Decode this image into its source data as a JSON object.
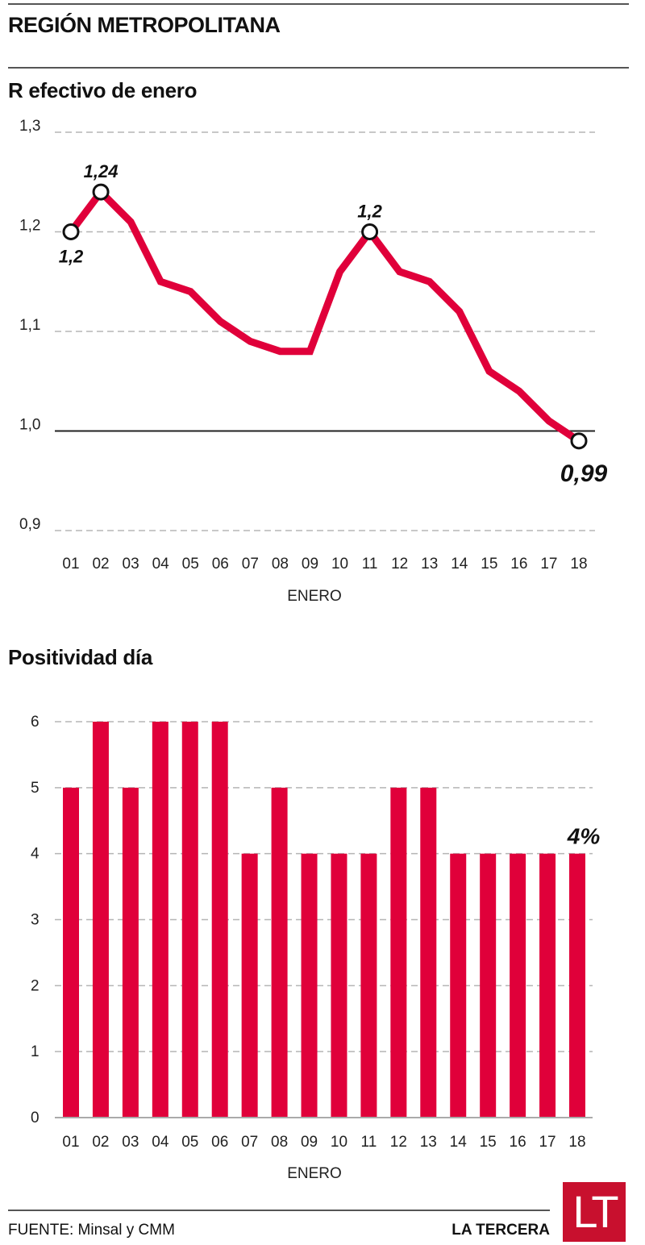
{
  "header": {
    "title": "REGIÓN METROPOLITANA"
  },
  "colors": {
    "accent": "#e0003a",
    "grid": "#b5b5b5",
    "reference_line": "#222222",
    "logo_bg": "#c8102e"
  },
  "chart_data": [
    {
      "type": "line",
      "title": "R efectivo de enero",
      "xlabel": "ENERO",
      "ylabel": "",
      "categories": [
        "01",
        "02",
        "03",
        "04",
        "05",
        "06",
        "07",
        "08",
        "09",
        "10",
        "11",
        "12",
        "13",
        "14",
        "15",
        "16",
        "17",
        "18"
      ],
      "values": [
        1.2,
        1.24,
        1.21,
        1.15,
        1.14,
        1.11,
        1.09,
        1.08,
        1.08,
        1.16,
        1.2,
        1.16,
        1.15,
        1.12,
        1.06,
        1.04,
        1.01,
        0.99
      ],
      "ylim": [
        0.9,
        1.3
      ],
      "yticks": [
        1.3,
        1.2,
        1.1,
        1.0,
        0.9
      ],
      "ytick_labels": [
        "1,3",
        "1,2",
        "1,1",
        "1,0",
        "0,9"
      ],
      "grid": true,
      "reference_line": 1.0,
      "annotations": [
        {
          "category": "01",
          "label": "1,2",
          "position": "below"
        },
        {
          "category": "02",
          "label": "1,24",
          "position": "above"
        },
        {
          "category": "11",
          "label": "1,2",
          "position": "above"
        },
        {
          "category": "18",
          "label": "0,99",
          "position": "below-large"
        }
      ]
    },
    {
      "type": "bar",
      "title": "Positividad día",
      "xlabel": "ENERO",
      "ylabel": "",
      "categories": [
        "01",
        "02",
        "03",
        "04",
        "05",
        "06",
        "07",
        "08",
        "09",
        "10",
        "11",
        "12",
        "13",
        "14",
        "15",
        "16",
        "17",
        "18"
      ],
      "values": [
        5,
        6,
        5,
        6,
        6,
        6,
        4,
        5,
        4,
        4,
        4,
        5,
        5,
        4,
        4,
        4,
        4,
        4
      ],
      "ylim": [
        0,
        6
      ],
      "yticks": [
        6,
        5,
        4,
        3,
        2,
        1,
        0
      ],
      "ytick_labels": [
        "6",
        "5",
        "4",
        "3",
        "2",
        "1",
        "0"
      ],
      "grid": true,
      "annotations": [
        {
          "category": "18",
          "label": "4%",
          "position": "above"
        }
      ]
    }
  ],
  "footer": {
    "source": "FUENTE: Minsal y CMM",
    "brand": "LA TERCERA",
    "logo_text": "LT"
  }
}
